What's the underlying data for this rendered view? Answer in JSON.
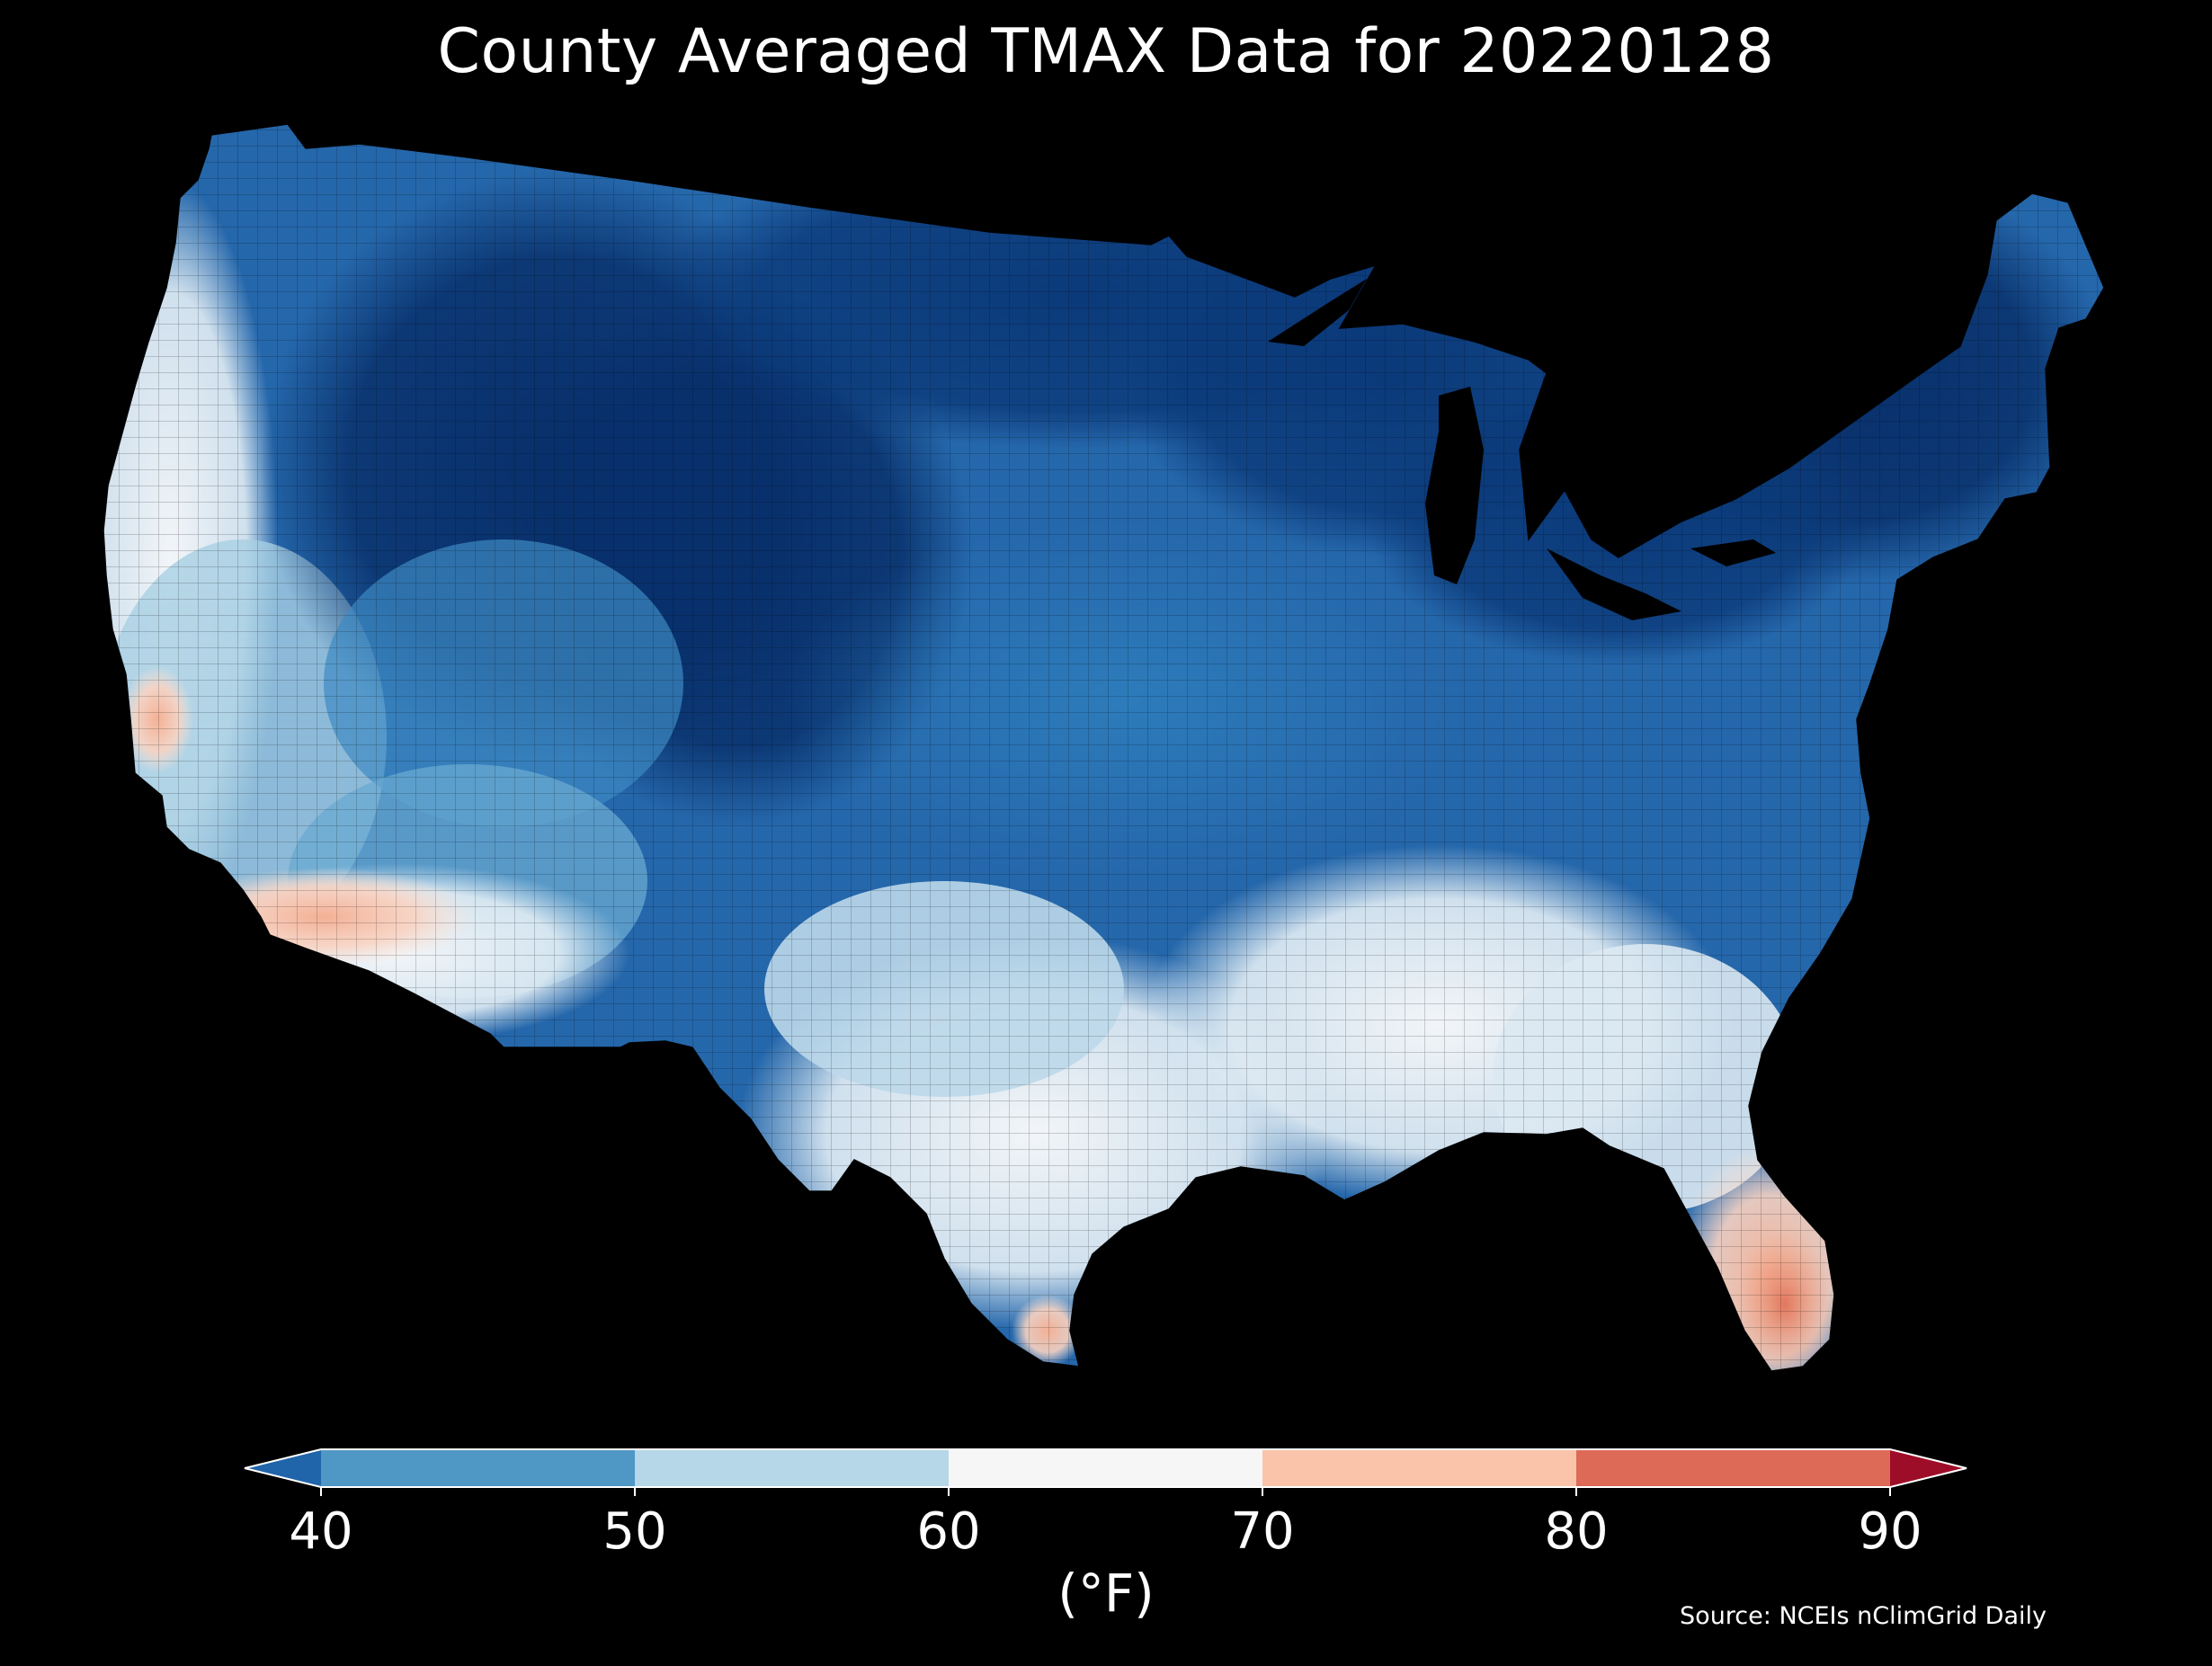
{
  "title": "County Averaged TMAX Data for 20220128",
  "source": "Source: NCEIs nClimGrid Daily",
  "colorbar": {
    "units": "(°F)",
    "ticks": [
      "40",
      "50",
      "60",
      "70",
      "80",
      "90"
    ],
    "bins": [
      {
        "from": 40,
        "to": 50,
        "color": "#4f98c6"
      },
      {
        "from": 50,
        "to": 60,
        "color": "#b6d7e8"
      },
      {
        "from": 60,
        "to": 70,
        "color": "#f6f6f6"
      },
      {
        "from": 70,
        "to": 80,
        "color": "#f9c4a9"
      },
      {
        "from": 80,
        "to": 90,
        "color": "#dd6a56"
      }
    ],
    "under_color": "#2064aa",
    "over_color": "#9e0d27"
  },
  "colors": {
    "background": "#000000",
    "coldest": "#08306b",
    "cold": "#1f5fa5",
    "cool": "#4f98c6",
    "mild": "#b6d7e8",
    "neutral": "#eef3f7",
    "warm": "#f9c4a9",
    "hot": "#e58267"
  }
}
